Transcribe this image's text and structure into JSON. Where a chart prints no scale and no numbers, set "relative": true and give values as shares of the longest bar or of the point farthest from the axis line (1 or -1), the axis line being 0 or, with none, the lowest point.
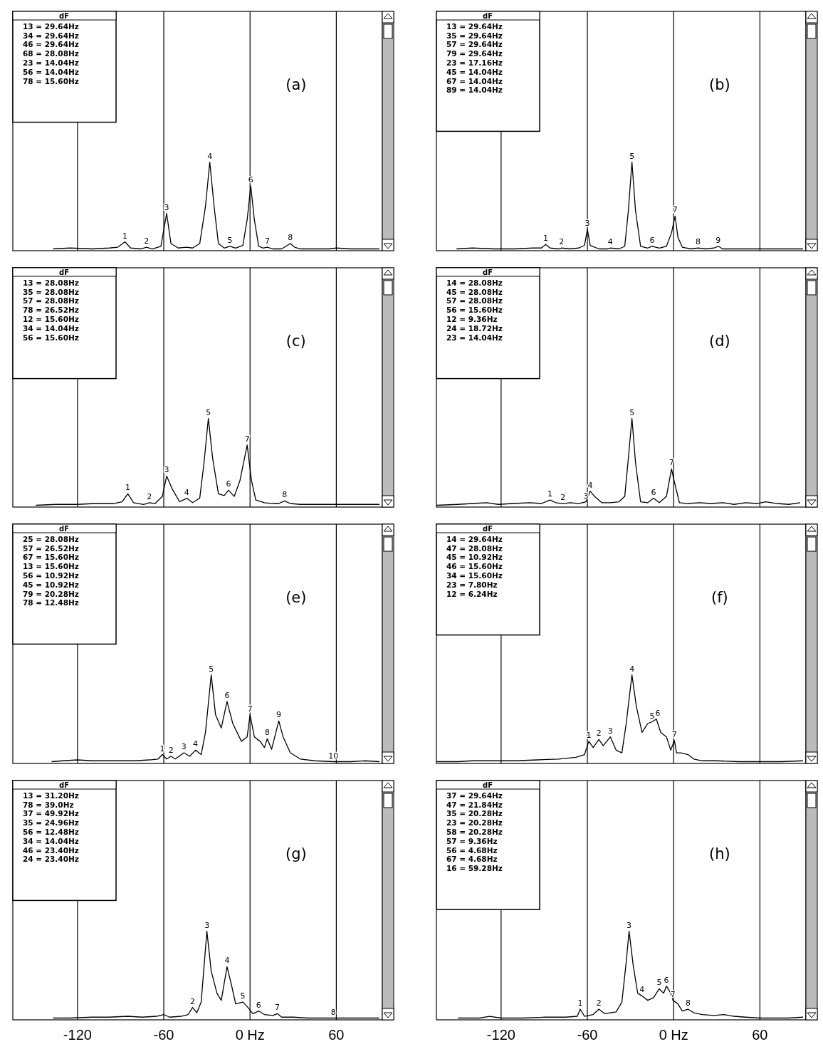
{
  "chart_data": [
    {
      "type": "line",
      "title": "(a)",
      "relative": true,
      "color": "#000000",
      "grid": "x",
      "tick_labels": false,
      "xlim": [
        -165,
        92
      ],
      "xticks": [
        -120,
        -60,
        0,
        60
      ],
      "x": [
        -137,
        -125,
        -110,
        -98,
        -92,
        -87,
        -83,
        -76,
        -72,
        -68,
        -62,
        -58,
        -55,
        -50,
        -44,
        -40,
        -35,
        -31,
        -28,
        -25,
        -22,
        -18,
        -14,
        -10,
        -5,
        -2,
        0.5,
        3,
        6,
        9,
        12,
        16,
        22,
        25,
        28,
        31,
        35,
        45,
        55,
        60,
        70,
        80,
        90
      ],
      "values": [
        0.02,
        0.03,
        0.02,
        0.03,
        0.04,
        0.1,
        0.03,
        0.02,
        0.04,
        0.02,
        0.05,
        0.42,
        0.08,
        0.03,
        0.04,
        0.03,
        0.08,
        0.5,
        1.0,
        0.5,
        0.08,
        0.03,
        0.05,
        0.03,
        0.06,
        0.35,
        0.73,
        0.35,
        0.05,
        0.03,
        0.04,
        0.02,
        0.02,
        0.05,
        0.08,
        0.04,
        0.02,
        0.02,
        0.02,
        0.03,
        0.02,
        0.02,
        0.02
      ],
      "annotations": [
        "dF",
        "13 = 29.64Hz",
        "34 = 29.64Hz",
        "46 = 29.64Hz",
        "68 = 28.08Hz",
        "23 = 14.04Hz",
        "56 = 14.04Hz",
        "78 = 15.60Hz",
        {
          "text": "1",
          "x": -87,
          "y": 0.1
        },
        {
          "text": "2",
          "x": -72,
          "y": 0.04
        },
        {
          "text": "3",
          "x": -58,
          "y": 0.42
        },
        {
          "text": "4",
          "x": -28,
          "y": 1.0
        },
        {
          "text": "5",
          "x": -14,
          "y": 0.05
        },
        {
          "text": "6",
          "x": 0.5,
          "y": 0.73
        },
        {
          "text": "7",
          "x": 12,
          "y": 0.04
        },
        {
          "text": "8",
          "x": 28,
          "y": 0.08
        }
      ]
    },
    {
      "type": "line",
      "title": "(b)",
      "relative": true,
      "color": "#000000",
      "grid": "x",
      "tick_labels": false,
      "xlim": [
        -165,
        92
      ],
      "xticks": [
        -120,
        -60,
        0,
        60
      ],
      "x": [
        -151,
        -140,
        -125,
        -110,
        -98,
        -92,
        -89,
        -86,
        -80,
        -78,
        -72,
        -66,
        -62,
        -60,
        -58,
        -52,
        -46,
        -44,
        -38,
        -34,
        -31.5,
        -29,
        -26.5,
        -23,
        -18,
        -15,
        -10,
        -5,
        -1.5,
        1,
        3,
        6,
        12,
        17,
        22,
        28,
        31,
        34,
        45,
        60,
        75,
        90
      ],
      "values": [
        0.02,
        0.03,
        0.02,
        0.02,
        0.03,
        0.03,
        0.07,
        0.03,
        0.02,
        0.03,
        0.02,
        0.03,
        0.06,
        0.24,
        0.06,
        0.02,
        0.02,
        0.03,
        0.02,
        0.05,
        0.45,
        1.0,
        0.45,
        0.05,
        0.03,
        0.05,
        0.03,
        0.05,
        0.2,
        0.39,
        0.15,
        0.04,
        0.02,
        0.03,
        0.02,
        0.03,
        0.05,
        0.02,
        0.02,
        0.02,
        0.02,
        0.02
      ],
      "annotations": [
        "dF",
        "13 = 29.64Hz",
        "35 = 29.64Hz",
        "57 = 29.64Hz",
        "79 = 29.64Hz",
        "23 = 17.16Hz",
        "45 = 14.04Hz",
        "67 = 14.04Hz",
        "89 = 14.04Hz",
        {
          "text": "1",
          "x": -89,
          "y": 0.07
        },
        {
          "text": "2",
          "x": -78,
          "y": 0.03
        },
        {
          "text": "3",
          "x": -60,
          "y": 0.24
        },
        {
          "text": "4",
          "x": -44,
          "y": 0.03
        },
        {
          "text": "5",
          "x": -29,
          "y": 1.0
        },
        {
          "text": "6",
          "x": -15,
          "y": 0.05
        },
        {
          "text": "7",
          "x": 1,
          "y": 0.39
        },
        {
          "text": "8",
          "x": 17,
          "y": 0.03
        },
        {
          "text": "9",
          "x": 31,
          "y": 0.05
        }
      ]
    },
    {
      "type": "line",
      "title": "(c)",
      "relative": true,
      "color": "#000000",
      "grid": "x",
      "tick_labels": false,
      "xlim": [
        -165,
        92
      ],
      "xticks": [
        -120,
        -60,
        0,
        60
      ],
      "x": [
        -149,
        -135,
        -120,
        -108,
        -95,
        -89,
        -85,
        -81,
        -74,
        -70,
        -66,
        -61,
        -58,
        -54,
        -49,
        -44,
        -40,
        -35,
        -32,
        -29,
        -26,
        -22,
        -18,
        -15,
        -11,
        -7,
        -2,
        1,
        4,
        10,
        16,
        20,
        24,
        28,
        35,
        45,
        60,
        75,
        90
      ],
      "values": [
        0.02,
        0.03,
        0.03,
        0.04,
        0.04,
        0.06,
        0.15,
        0.05,
        0.03,
        0.05,
        0.04,
        0.12,
        0.35,
        0.2,
        0.06,
        0.1,
        0.05,
        0.1,
        0.5,
        1.0,
        0.55,
        0.15,
        0.13,
        0.19,
        0.12,
        0.3,
        0.7,
        0.3,
        0.08,
        0.05,
        0.04,
        0.04,
        0.07,
        0.04,
        0.03,
        0.03,
        0.03,
        0.03,
        0.03
      ],
      "annotations": [
        "dF",
        "13 = 28.08Hz",
        "35 = 28.08Hz",
        "57 = 28.08Hz",
        "78 = 26.52Hz",
        "12 = 15.60Hz",
        "34 = 14.04Hz",
        "56 = 15.60Hz",
        {
          "text": "1",
          "x": -85,
          "y": 0.15
        },
        {
          "text": "2",
          "x": -70,
          "y": 0.05
        },
        {
          "text": "3",
          "x": -58,
          "y": 0.35
        },
        {
          "text": "4",
          "x": -44,
          "y": 0.1
        },
        {
          "text": "5",
          "x": -29,
          "y": 1.0
        },
        {
          "text": "6",
          "x": -15,
          "y": 0.19
        },
        {
          "text": "7",
          "x": -2,
          "y": 0.7
        },
        {
          "text": "8",
          "x": 24,
          "y": 0.07
        }
      ]
    },
    {
      "type": "line",
      "title": "(d)",
      "relative": true,
      "color": "#000000",
      "grid": "x",
      "tick_labels": false,
      "xlim": [
        -165,
        92
      ],
      "xticks": [
        -120,
        -60,
        0,
        60
      ],
      "x": [
        -165,
        -150,
        -140,
        -130,
        -122,
        -112,
        -100,
        -92,
        -86,
        -82,
        -77,
        -72,
        -66,
        -61,
        -58,
        -55,
        -50,
        -44,
        -38,
        -34,
        -31.5,
        -29,
        -26.5,
        -23,
        -18,
        -14,
        -10,
        -5,
        -1.5,
        1,
        4,
        10,
        18,
        26,
        34,
        42,
        50,
        58,
        64,
        72,
        80,
        88
      ],
      "values": [
        0.02,
        0.03,
        0.04,
        0.05,
        0.03,
        0.04,
        0.05,
        0.04,
        0.08,
        0.05,
        0.04,
        0.05,
        0.04,
        0.06,
        0.18,
        0.12,
        0.05,
        0.05,
        0.06,
        0.12,
        0.55,
        1.0,
        0.5,
        0.06,
        0.05,
        0.1,
        0.05,
        0.12,
        0.43,
        0.25,
        0.05,
        0.04,
        0.05,
        0.04,
        0.05,
        0.03,
        0.05,
        0.04,
        0.06,
        0.04,
        0.03,
        0.05
      ],
      "annotations": [
        "dF",
        "14 = 28.08Hz",
        "45 = 28.08Hz",
        "57 = 28.08Hz",
        "56 = 15.60Hz",
        "12 = 9.36Hz",
        "24 = 18.72Hz",
        "23 = 14.04Hz",
        {
          "text": "1",
          "x": -86,
          "y": 0.08
        },
        {
          "text": "2",
          "x": -77,
          "y": 0.04
        },
        {
          "text": "3",
          "x": -61,
          "y": 0.06
        },
        {
          "text": "4",
          "x": -58,
          "y": 0.18
        },
        {
          "text": "5",
          "x": -29,
          "y": 1.0
        },
        {
          "text": "6",
          "x": -14,
          "y": 0.1
        },
        {
          "text": "7",
          "x": -1.5,
          "y": 0.43
        }
      ]
    },
    {
      "type": "line",
      "title": "(e)",
      "relative": true,
      "color": "#000000",
      "grid": "x",
      "tick_labels": false,
      "xlim": [
        -165,
        92
      ],
      "xticks": [
        -120,
        -60,
        0,
        60
      ],
      "x": [
        -138,
        -130,
        -120,
        -110,
        -95,
        -80,
        -70,
        -64,
        -61,
        -58,
        -55,
        -52,
        -46,
        -42,
        -38,
        -34,
        -31,
        -27,
        -24,
        -20,
        -16,
        -12,
        -6,
        -2,
        0,
        3,
        7,
        10,
        12,
        15,
        20,
        23,
        28,
        35,
        45,
        58,
        70,
        80,
        90
      ],
      "values": [
        0.02,
        0.03,
        0.04,
        0.03,
        0.03,
        0.03,
        0.04,
        0.05,
        0.1,
        0.05,
        0.08,
        0.05,
        0.12,
        0.08,
        0.15,
        0.1,
        0.35,
        1.0,
        0.55,
        0.4,
        0.7,
        0.45,
        0.25,
        0.3,
        0.55,
        0.3,
        0.25,
        0.18,
        0.28,
        0.16,
        0.48,
        0.3,
        0.12,
        0.05,
        0.03,
        0.02,
        0.02,
        0.03,
        0.02
      ],
      "annotations": [
        "dF",
        "25 = 28.08Hz",
        "57 = 26.52Hz",
        "67 = 15.60Hz",
        "13 = 15.60Hz",
        "56 = 10.92Hz",
        "45 = 10.92Hz",
        "79 = 20.28Hz",
        "78 = 12.48Hz",
        {
          "text": "1",
          "x": -61,
          "y": 0.1
        },
        {
          "text": "2",
          "x": -55,
          "y": 0.08
        },
        {
          "text": "3",
          "x": -46,
          "y": 0.12
        },
        {
          "text": "4",
          "x": -38,
          "y": 0.15
        },
        {
          "text": "5",
          "x": -27,
          "y": 1.0
        },
        {
          "text": "6",
          "x": -16,
          "y": 0.7
        },
        {
          "text": "7",
          "x": 0,
          "y": 0.55
        },
        {
          "text": "8",
          "x": 12,
          "y": 0.28
        },
        {
          "text": "9",
          "x": 20,
          "y": 0.48
        },
        {
          "text": "10",
          "x": 58,
          "y": 0.02
        }
      ]
    },
    {
      "type": "line",
      "title": "(f)",
      "relative": true,
      "color": "#000000",
      "grid": "x",
      "tick_labels": false,
      "xlim": [
        -165,
        92
      ],
      "xticks": [
        -120,
        -60,
        0,
        60
      ],
      "x": [
        -165,
        -150,
        -140,
        -125,
        -110,
        -95,
        -80,
        -68,
        -62,
        -59,
        -56,
        -52,
        -49,
        -44,
        -40,
        -36,
        -33,
        -29,
        -26,
        -22,
        -18,
        -15,
        -12,
        -9,
        -5,
        -2,
        0.5,
        2,
        5,
        10,
        14,
        20,
        30,
        45,
        60,
        75,
        90
      ],
      "values": [
        0.02,
        0.02,
        0.03,
        0.03,
        0.03,
        0.04,
        0.05,
        0.07,
        0.1,
        0.25,
        0.18,
        0.27,
        0.2,
        0.3,
        0.15,
        0.12,
        0.45,
        1.0,
        0.65,
        0.35,
        0.45,
        0.47,
        0.5,
        0.35,
        0.3,
        0.15,
        0.26,
        0.12,
        0.12,
        0.1,
        0.05,
        0.03,
        0.03,
        0.02,
        0.02,
        0.02,
        0.03
      ],
      "annotations": [
        "dF",
        "14 = 29.64Hz",
        "47 = 28.08Hz",
        "45 = 10.92Hz",
        "46 = 15.60Hz",
        "34 = 15.60Hz",
        "23 = 7.80Hz",
        "12 = 6.24Hz",
        {
          "text": "1",
          "x": -59,
          "y": 0.25
        },
        {
          "text": "2",
          "x": -52,
          "y": 0.27
        },
        {
          "text": "3",
          "x": -44,
          "y": 0.3
        },
        {
          "text": "4",
          "x": -29,
          "y": 1.0
        },
        {
          "text": "5",
          "x": -15,
          "y": 0.47
        },
        {
          "text": "6",
          "x": -11,
          "y": 0.5
        },
        {
          "text": "7",
          "x": 0.5,
          "y": 0.26
        }
      ]
    },
    {
      "type": "line",
      "title": "(g)",
      "relative": true,
      "color": "#000000",
      "grid": "x",
      "tick_labels": "x",
      "xlim": [
        -165,
        92
      ],
      "xticks": [
        -120,
        -60,
        {
          "value": 0,
          "label": "0 Hz"
        },
        60
      ],
      "x": [
        -137,
        -125,
        -110,
        -98,
        -85,
        -75,
        -65,
        -60,
        -56,
        -48,
        -43,
        -40,
        -37,
        -34,
        -32,
        -30,
        -27,
        -23,
        -20,
        -16,
        -13,
        -10,
        -5,
        -2,
        2,
        6,
        10,
        16,
        19,
        22,
        30,
        40,
        50,
        58,
        70,
        80,
        90
      ],
      "values": [
        0.02,
        0.02,
        0.03,
        0.03,
        0.04,
        0.03,
        0.04,
        0.06,
        0.03,
        0.04,
        0.06,
        0.14,
        0.08,
        0.2,
        0.6,
        1.0,
        0.55,
        0.3,
        0.22,
        0.6,
        0.4,
        0.18,
        0.2,
        0.15,
        0.07,
        0.1,
        0.06,
        0.05,
        0.07,
        0.03,
        0.03,
        0.02,
        0.02,
        0.02,
        0.02,
        0.02,
        0.02
      ],
      "annotations": [
        "dF",
        "13 = 31.20Hz",
        "78 = 39.0Hz",
        "37 = 49.92Hz",
        "35 = 24.96Hz",
        "56 = 12.48Hz",
        "34 = 14.04Hz",
        "46 = 23.40Hz",
        "24 = 23.40Hz",
        {
          "text": "2",
          "x": -40,
          "y": 0.14
        },
        {
          "text": "3",
          "x": -30,
          "y": 1.0
        },
        {
          "text": "4",
          "x": -16,
          "y": 0.6
        },
        {
          "text": "5",
          "x": -5,
          "y": 0.2
        },
        {
          "text": "6",
          "x": 6,
          "y": 0.1
        },
        {
          "text": "7",
          "x": 19,
          "y": 0.07
        },
        {
          "text": "8",
          "x": 58,
          "y": 0.02
        }
      ]
    },
    {
      "type": "line",
      "title": "(h)",
      "relative": true,
      "color": "#000000",
      "grid": "x",
      "tick_labels": "x",
      "xlim": [
        -165,
        92
      ],
      "xticks": [
        -120,
        -60,
        {
          "value": 0,
          "label": "0 Hz"
        },
        60
      ],
      "x": [
        -150,
        -135,
        -128,
        -120,
        -105,
        -90,
        -75,
        -67,
        -65,
        -62,
        -56,
        -52,
        -48,
        -40,
        -36,
        -33,
        -31,
        -28,
        -25,
        -22,
        -18,
        -14,
        -10,
        -7,
        -5,
        -2,
        -0.5,
        3,
        6,
        10,
        14,
        20,
        28,
        35,
        42,
        50,
        60,
        70,
        80,
        90
      ],
      "values": [
        0.02,
        0.02,
        0.04,
        0.02,
        0.02,
        0.03,
        0.03,
        0.04,
        0.12,
        0.04,
        0.06,
        0.12,
        0.07,
        0.09,
        0.2,
        0.65,
        1.0,
        0.6,
        0.3,
        0.27,
        0.22,
        0.25,
        0.35,
        0.3,
        0.38,
        0.3,
        0.22,
        0.18,
        0.1,
        0.12,
        0.08,
        0.06,
        0.05,
        0.06,
        0.04,
        0.03,
        0.02,
        0.02,
        0.02,
        0.03
      ],
      "annotations": [
        "dF",
        "37 = 29.64Hz",
        "47 = 21.84Hz",
        "35 = 20.28Hz",
        "23 = 20.28Hz",
        "58 = 20.28Hz",
        "57 = 9.36Hz",
        "56 = 4.68Hz",
        "67 = 4.68Hz",
        "16 = 59.28Hz",
        {
          "text": "1",
          "x": -65,
          "y": 0.12
        },
        {
          "text": "2",
          "x": -52,
          "y": 0.12
        },
        {
          "text": "3",
          "x": -31,
          "y": 1.0
        },
        {
          "text": "4",
          "x": -22,
          "y": 0.27
        },
        {
          "text": "5",
          "x": -10,
          "y": 0.35
        },
        {
          "text": "6",
          "x": -5,
          "y": 0.38
        },
        {
          "text": "7",
          "x": -0.5,
          "y": 0.22
        },
        {
          "text": "8",
          "x": 10,
          "y": 0.12
        }
      ]
    }
  ]
}
